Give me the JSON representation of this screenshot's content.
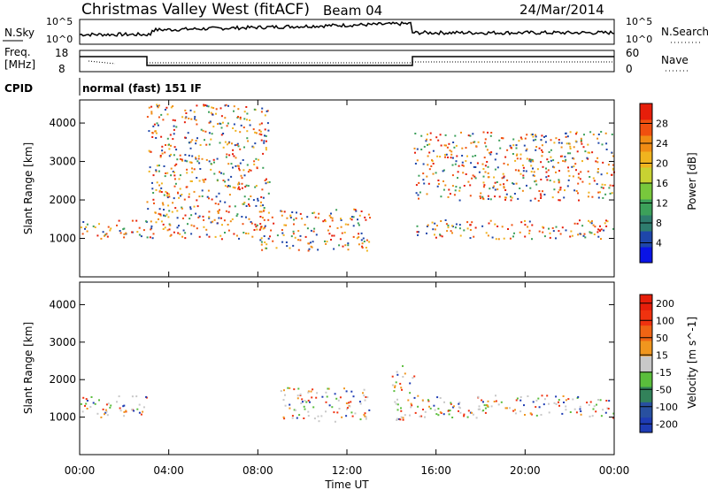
{
  "header": {
    "radar": "Christmas Valley West (fitACF)",
    "beam": "Beam 04",
    "date": "24/Mar/2014"
  },
  "top_panels": {
    "nsky_label": "N.Sky",
    "nsky_ticks": [
      "10^5",
      "10^0"
    ],
    "nsearch_ticks": [
      "10^5",
      "10^0"
    ],
    "nsearch_label": "N.Search",
    "freq_label_1": "Freq.",
    "freq_label_2": "[MHz]",
    "freq_ticks": [
      "18",
      "8"
    ],
    "nave_ticks": [
      "60",
      "0"
    ],
    "nave_label": "Nave",
    "cpid_label": "CPID",
    "cpid_value": "normal (fast) 151 IF"
  },
  "chart_data": [
    {
      "type": "heatmap",
      "title": "",
      "xlabel": "Time UT",
      "ylabel": "Slant Range [km]",
      "x_ticks": [
        "00:00",
        "04:00",
        "08:00",
        "12:00",
        "16:00",
        "20:00",
        "00:00"
      ],
      "xlim_hours": [
        0,
        24
      ],
      "ylim": [
        0,
        4600
      ],
      "y_ticks": [
        1000,
        2000,
        3000,
        4000
      ],
      "colorbar": {
        "label": "Power [dB]",
        "ticks": [
          "4",
          "8",
          "12",
          "16",
          "20",
          "24",
          "28"
        ],
        "colors": [
          "#0a14e6",
          "#1e46aa",
          "#2e7d6e",
          "#3ca05a",
          "#78c83c",
          "#c8d232",
          "#f0b41e",
          "#f08c14",
          "#f0500f",
          "#e61e0a"
        ]
      },
      "features": [
        {
          "name": "strong near-range band 00-03 UT",
          "time_hours": [
            0,
            3
          ],
          "range_km": [
            1000,
            1500
          ],
          "level": "28"
        },
        {
          "name": "rising F-region trace",
          "time_hours": [
            3,
            8.5
          ],
          "range_km": [
            1000,
            4500
          ],
          "level": "24"
        },
        {
          "name": "ionospheric echoes 11-13 UT",
          "time_hours": [
            8,
            13
          ],
          "range_km": [
            700,
            1800
          ],
          "level": "8-16"
        },
        {
          "name": "near-range band 15-24 UT",
          "time_hours": [
            15,
            24
          ],
          "range_km": [
            1000,
            1500
          ],
          "level": "28"
        },
        {
          "name": "decaying multi-hop arcs 16-24 UT",
          "time_hours": [
            15,
            24
          ],
          "range_km": [
            2000,
            3800
          ],
          "level": "20-24"
        }
      ]
    },
    {
      "type": "heatmap",
      "title": "",
      "xlabel": "Time UT",
      "ylabel": "Slant Range [km]",
      "x_ticks": [
        "00:00",
        "04:00",
        "08:00",
        "12:00",
        "16:00",
        "20:00",
        "00:00"
      ],
      "xlim_hours": [
        0,
        24
      ],
      "ylim": [
        0,
        4600
      ],
      "y_ticks": [
        1000,
        2000,
        3000,
        4000
      ],
      "colorbar": {
        "label": "Velocity [m s^-1]",
        "ticks": [
          "200",
          "100",
          "50",
          "15",
          "-15",
          "-50",
          "-100",
          "-200"
        ],
        "colors": [
          "#1e3cb4",
          "#2850a0",
          "#32825a",
          "#5abe3c",
          "#c8c8c8",
          "#f0961e",
          "#f06414",
          "#f0320f",
          "#e61e0a"
        ]
      },
      "features": [
        {
          "name": "ground scatter near range (low velocity)",
          "time_hours": [
            0,
            3
          ],
          "range_km": [
            1000,
            1600
          ],
          "level": "-15..15"
        },
        {
          "name": "ground scatter near range (low velocity)",
          "time_hours": [
            15,
            24
          ],
          "range_km": [
            1000,
            1600
          ],
          "level": "-15..15"
        },
        {
          "name": "negative velocity echoes 10-13 UT",
          "time_hours": [
            9,
            13
          ],
          "range_km": [
            900,
            1800
          ],
          "level": "-50"
        },
        {
          "name": "positive velocity streak ~14 UT",
          "time_hours": [
            14,
            15
          ],
          "range_km": [
            900,
            2400
          ],
          "level": "50"
        }
      ]
    }
  ]
}
